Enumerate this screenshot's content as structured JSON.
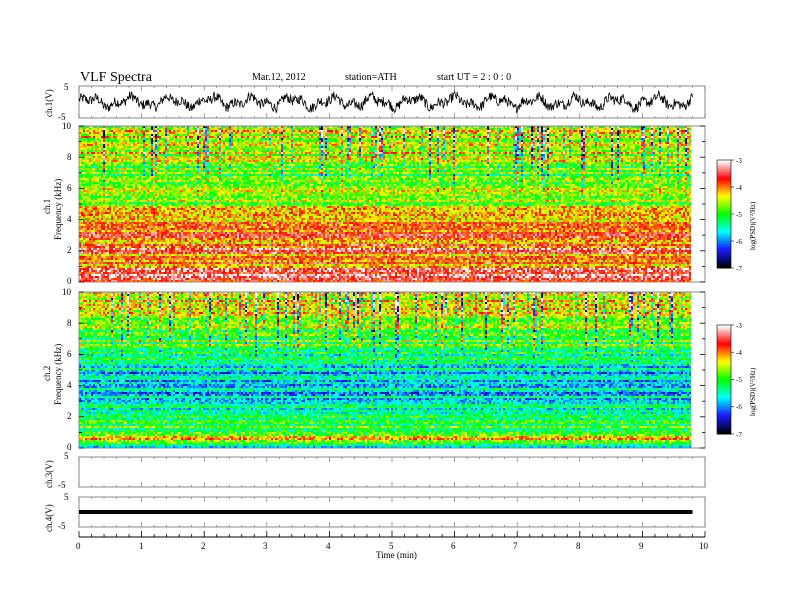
{
  "header": {
    "title": "VLF  Spectra",
    "date": "Mar.12, 2012",
    "station": "station=ATH",
    "start": "start  UT  =   2  : 0  : 0"
  },
  "panels": {
    "ch1v": {
      "label": "ch.1(V)",
      "yticks": [
        "5",
        "-5"
      ]
    },
    "ch1": {
      "label": "ch.1",
      "ylabel": "Frequency  (kHz)",
      "yticks": [
        "10",
        "8",
        "6",
        "4",
        "2",
        "0"
      ],
      "colorbar_label": "log(PSD)(V²/Hz)",
      "colorbar_ticks": [
        "-3",
        "-4",
        "-5",
        "-6",
        "-7"
      ]
    },
    "ch2": {
      "label": "ch.2",
      "ylabel": "Frequency  (kHz)",
      "yticks": [
        "10",
        "8",
        "6",
        "4",
        "2",
        "0"
      ],
      "colorbar_label": "log(PSD)(V²/Hz)",
      "colorbar_ticks": [
        "-3",
        "-4",
        "-5",
        "-6",
        "-7"
      ]
    },
    "ch3v": {
      "label": "ch.3(V)",
      "yticks": [
        "5",
        "-5"
      ]
    },
    "ch4v": {
      "label": "ch.4(V)",
      "yticks": [
        "5",
        "-5"
      ]
    }
  },
  "xaxis": {
    "label": "Time  (min)",
    "ticks": [
      "0",
      "1",
      "2",
      "3",
      "4",
      "5",
      "6",
      "7",
      "8",
      "9",
      "10"
    ]
  },
  "colors": {
    "colormap": [
      "#000000",
      "#1a1aff",
      "#00ffff",
      "#00ff00",
      "#ffff00",
      "#ff0000",
      "#ffffff"
    ]
  },
  "chart_data": [
    {
      "type": "line",
      "panel": "ch.1 waveform",
      "ylabel": "ch.1(V)",
      "xlim": [
        0,
        10
      ],
      "ylim": [
        -5,
        5
      ],
      "data_extent_min": 9.8,
      "x": [
        0,
        1,
        2,
        3,
        4,
        5,
        6,
        7,
        8,
        9,
        9.8
      ],
      "y": [
        0.3,
        -0.4,
        0.5,
        -0.6,
        0.2,
        -0.3,
        0.4,
        -0.5,
        0.3,
        -0.2,
        0.1
      ],
      "amplitude_range": [
        -3,
        3
      ]
    },
    {
      "type": "heatmap",
      "panel": "ch.1 spectrogram",
      "xlabel": "Time  (min)",
      "ylabel": "Frequency  (kHz)",
      "xlim": [
        0,
        10
      ],
      "ylim": [
        0,
        10
      ],
      "data_extent_min": 9.8,
      "color_label": "log(PSD)(V²/Hz)",
      "color_range": [
        -7,
        -3
      ],
      "freq_kHz": [
        0,
        0.5,
        1,
        1.5,
        2,
        2.5,
        3,
        3.5,
        4,
        4.5,
        5,
        5.5,
        6,
        6.5,
        7,
        7.5,
        8,
        8.5,
        9,
        9.5,
        10
      ],
      "mean_log_psd": [
        -3.2,
        -3.4,
        -3.9,
        -4.1,
        -3.6,
        -4.0,
        -3.8,
        -4.1,
        -4.2,
        -4.3,
        -4.5,
        -4.8,
        -4.7,
        -4.9,
        -4.8,
        -4.7,
        -4.6,
        -4.5,
        -4.4,
        -4.4,
        -4.5
      ]
    },
    {
      "type": "heatmap",
      "panel": "ch.2 spectrogram",
      "xlabel": "Time  (min)",
      "ylabel": "Frequency  (kHz)",
      "xlim": [
        0,
        10
      ],
      "ylim": [
        0,
        10
      ],
      "data_extent_min": 9.8,
      "color_label": "log(PSD)(V²/Hz)",
      "color_range": [
        -7,
        -3
      ],
      "freq_kHz": [
        0,
        0.5,
        1,
        1.5,
        2,
        2.5,
        3,
        3.5,
        4,
        4.5,
        5,
        5.5,
        6,
        6.5,
        7,
        7.5,
        8,
        8.5,
        9,
        9.5,
        10
      ],
      "mean_log_psd": [
        -5.6,
        -4.2,
        -4.8,
        -5.2,
        -5.3,
        -5.4,
        -5.4,
        -6.0,
        -5.5,
        -5.9,
        -5.6,
        -5.3,
        -5.2,
        -5.0,
        -4.9,
        -4.8,
        -4.7,
        -4.6,
        -4.5,
        -4.4,
        -4.5
      ]
    },
    {
      "type": "line",
      "panel": "ch.3 waveform",
      "ylabel": "ch.3(V)",
      "xlim": [
        0,
        10
      ],
      "ylim": [
        -5,
        5
      ],
      "x": [],
      "y": []
    },
    {
      "type": "line",
      "panel": "ch.4 waveform",
      "ylabel": "ch.4(V)",
      "xlim": [
        0,
        10
      ],
      "ylim": [
        -5,
        5
      ],
      "data_extent_min": 9.8,
      "x": [
        0,
        2,
        4,
        6,
        8,
        9.8
      ],
      "y": [
        0,
        0,
        0,
        0,
        0,
        0
      ]
    }
  ]
}
